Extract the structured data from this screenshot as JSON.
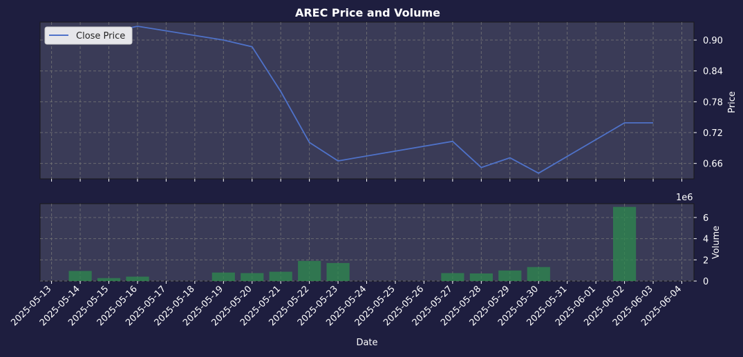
{
  "chart_data": {
    "title": "AREC Price and Volume",
    "xlabel": "Date",
    "x_ticks": [
      "2025-05-13",
      "2025-05-14",
      "2025-05-15",
      "2025-05-16",
      "2025-05-17",
      "2025-05-18",
      "2025-05-19",
      "2025-05-20",
      "2025-05-21",
      "2025-05-22",
      "2025-05-23",
      "2025-05-24",
      "2025-05-25",
      "2025-05-26",
      "2025-05-27",
      "2025-05-28",
      "2025-05-29",
      "2025-05-30",
      "2025-05-31",
      "2025-06-01",
      "2025-06-02",
      "2025-06-03",
      "2025-06-04"
    ],
    "xlim": [
      "2025-05-12",
      "2025-06-04"
    ],
    "charts": [
      {
        "type": "line",
        "ylabel": "Price",
        "ylim": [
          0.63,
          0.935
        ],
        "y_ticks": [
          0.66,
          0.72,
          0.78,
          0.84,
          0.9
        ],
        "grid": true,
        "legend": "top-left",
        "series": [
          {
            "name": "Close Price",
            "color": "#4f72c9",
            "points": [
              [
                "2025-05-14",
                0.899
              ],
              [
                "2025-05-15",
                0.915
              ],
              [
                "2025-05-16",
                0.927
              ],
              [
                "2025-05-19",
                0.9
              ],
              [
                "2025-05-20",
                0.887
              ],
              [
                "2025-05-21",
                0.8
              ],
              [
                "2025-05-22",
                0.701
              ],
              [
                "2025-05-23",
                0.665
              ],
              [
                "2025-05-27",
                0.703
              ],
              [
                "2025-05-28",
                0.652
              ],
              [
                "2025-05-29",
                0.671
              ],
              [
                "2025-05-30",
                0.641
              ],
              [
                "2025-06-02",
                0.739
              ],
              [
                "2025-06-03",
                0.739
              ]
            ]
          }
        ]
      },
      {
        "type": "bar",
        "ylabel": "Volume",
        "y_scale_label": "1e6",
        "ylim": [
          0,
          7.3
        ],
        "y_ticks": [
          0,
          2,
          4,
          6
        ],
        "grid": true,
        "bar_color": "#2e8b4e",
        "values_millions": [
          [
            "2025-05-14",
            0.95
          ],
          [
            "2025-05-15",
            0.28
          ],
          [
            "2025-05-16",
            0.42
          ],
          [
            "2025-05-19",
            0.8
          ],
          [
            "2025-05-20",
            0.75
          ],
          [
            "2025-05-21",
            0.88
          ],
          [
            "2025-05-22",
            1.9
          ],
          [
            "2025-05-23",
            1.7
          ],
          [
            "2025-05-27",
            0.75
          ],
          [
            "2025-05-28",
            0.72
          ],
          [
            "2025-05-29",
            1.0
          ],
          [
            "2025-05-30",
            1.32
          ],
          [
            "2025-06-02",
            7.0
          ]
        ]
      }
    ]
  },
  "colors": {
    "background": "#1e1e3f",
    "plot_background": "#3a3b57",
    "text": "#ffffff",
    "grid": "#777777"
  }
}
